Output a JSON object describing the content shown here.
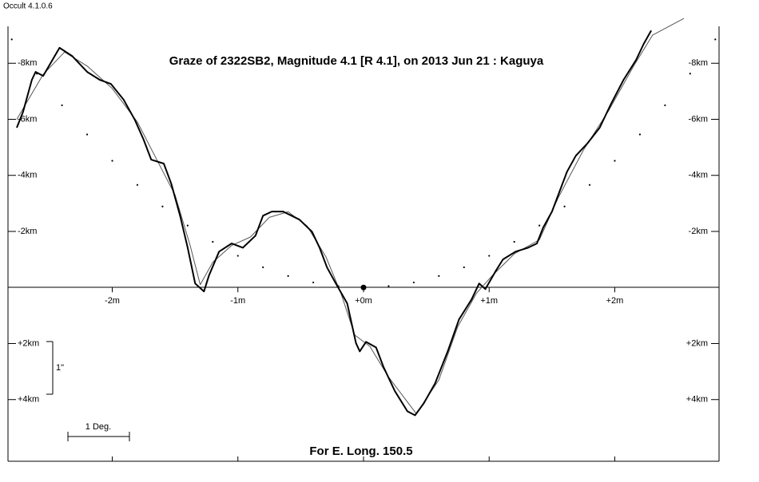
{
  "app_title": "Occult 4.1.0.6",
  "chart_data": {
    "type": "line",
    "title": "Graze of  2322SB2,  Magnitude 4.1 [R 4.1],  on 2013 Jun 21  :  Kaguya",
    "footer": "For E. Long. 150.5",
    "scale_bar_x": "1 Deg.",
    "scale_bar_y": "1\"",
    "xlim": [
      -2.83,
      2.83
    ],
    "ylim": [
      -9.26,
      6.2
    ],
    "y_inverted": true,
    "xticks": [
      {
        "value": -2,
        "label": "-2m"
      },
      {
        "value": -1,
        "label": "-1m"
      },
      {
        "value": 0,
        "label": "+0m"
      },
      {
        "value": 1,
        "label": "+1m"
      },
      {
        "value": 2,
        "label": "+2m"
      }
    ],
    "yticks": [
      {
        "value": -8,
        "label": "-8km"
      },
      {
        "value": -6,
        "label": "-6km"
      },
      {
        "value": -4,
        "label": "-4km"
      },
      {
        "value": -2,
        "label": "-2km"
      },
      {
        "value": 2,
        "label": "+2km"
      },
      {
        "value": 4,
        "label": "+4km"
      }
    ],
    "center": {
      "x": 0,
      "y": 0
    },
    "series": [
      {
        "style": "dots",
        "color": "#000000",
        "x": [
          -2.8,
          -2.6,
          -2.4,
          -2.2,
          -2.0,
          -1.8,
          -1.6,
          -1.4,
          -1.2,
          -1.0,
          -0.8,
          -0.6,
          -0.4,
          -0.2,
          0,
          0.2,
          0.4,
          0.6,
          0.8,
          1.0,
          1.2,
          1.4,
          1.6,
          1.8,
          2.0,
          2.2,
          2.4,
          2.6,
          2.8
        ],
        "values": [
          -8.85,
          -7.63,
          -6.5,
          -5.46,
          -4.52,
          -3.66,
          -2.89,
          -2.21,
          -1.63,
          -1.13,
          -0.72,
          -0.41,
          -0.18,
          -0.05,
          0,
          -0.05,
          -0.18,
          -0.41,
          -0.72,
          -1.13,
          -1.63,
          -2.21,
          -2.89,
          -3.66,
          -4.52,
          -5.46,
          -6.5,
          -7.63,
          -8.85
        ]
      },
      {
        "style": "line",
        "color": "#555555",
        "width": 1,
        "x": [
          -2.76,
          -2.55,
          -2.38,
          -2.2,
          -2.0,
          -1.8,
          -1.65,
          -1.5,
          -1.38,
          -1.3,
          -1.2,
          -1.05,
          -0.9,
          -0.75,
          -0.6,
          -0.45,
          -0.3,
          -0.18,
          -0.07,
          0.05,
          0.2,
          0.42,
          0.6,
          0.75,
          0.9,
          1.02,
          1.2,
          1.4,
          1.55,
          1.75,
          1.95,
          2.15,
          2.3,
          2.55
        ],
        "values": [
          -6.0,
          -7.6,
          -8.4,
          -7.9,
          -7.1,
          -5.9,
          -4.6,
          -3.3,
          -1.5,
          -0.1,
          -0.9,
          -1.5,
          -1.8,
          -2.5,
          -2.7,
          -2.2,
          -1.1,
          0.2,
          1.7,
          2.1,
          3.2,
          4.5,
          3.3,
          1.4,
          0.2,
          -0.4,
          -1.2,
          -1.7,
          -3.2,
          -4.9,
          -6.3,
          -7.9,
          -9.0,
          -9.6
        ]
      },
      {
        "style": "line",
        "color": "#000000",
        "width": 2,
        "x": [
          -2.76,
          -2.71,
          -2.64,
          -2.61,
          -2.55,
          -2.42,
          -2.32,
          -2.2,
          -2.1,
          -2.01,
          -1.91,
          -1.82,
          -1.75,
          -1.69,
          -1.59,
          -1.53,
          -1.46,
          -1.4,
          -1.34,
          -1.27,
          -1.23,
          -1.15,
          -1.05,
          -0.96,
          -0.86,
          -0.8,
          -0.73,
          -0.64,
          -0.51,
          -0.41,
          -0.35,
          -0.29,
          -0.22,
          -0.13,
          -0.06,
          -0.03,
          0.02,
          0.1,
          0.16,
          0.25,
          0.35,
          0.41,
          0.48,
          0.57,
          0.67,
          0.76,
          0.86,
          0.92,
          0.97,
          1.05,
          1.11,
          1.21,
          1.31,
          1.38,
          1.43,
          1.5,
          1.56,
          1.62,
          1.69,
          1.78,
          1.88,
          1.97,
          2.07,
          2.17,
          2.23,
          2.29
        ],
        "values": [
          -5.7,
          -6.27,
          -7.41,
          -7.69,
          -7.55,
          -8.55,
          -8.26,
          -7.69,
          -7.41,
          -7.26,
          -6.7,
          -5.98,
          -5.27,
          -4.56,
          -4.42,
          -3.7,
          -2.56,
          -1.42,
          -0.14,
          0.14,
          -0.43,
          -1.28,
          -1.57,
          -1.42,
          -1.85,
          -2.56,
          -2.71,
          -2.71,
          -2.42,
          -1.99,
          -1.42,
          -0.71,
          -0.14,
          0.57,
          1.99,
          2.28,
          1.94,
          2.14,
          2.85,
          3.7,
          4.42,
          4.56,
          4.13,
          3.42,
          2.28,
          1.14,
          0.43,
          -0.14,
          0.06,
          -0.57,
          -1.0,
          -1.28,
          -1.42,
          -1.57,
          -2.14,
          -2.71,
          -3.42,
          -4.13,
          -4.7,
          -5.13,
          -5.7,
          -6.55,
          -7.41,
          -8.12,
          -8.69,
          -9.17
        ]
      }
    ]
  }
}
